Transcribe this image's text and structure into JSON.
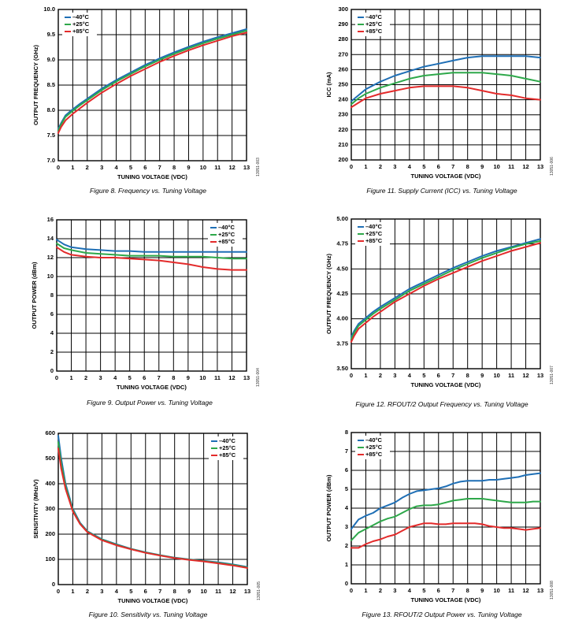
{
  "chart_data": [
    {
      "type": "line",
      "caption": "Figure 8. Frequency vs. Tuning Voltage",
      "xlabel": "TUNING VOLTAGE (VDC)",
      "ylabel": "OUTPUT FREQUENCY (GHz)",
      "code": "13051-003",
      "xlim": [
        0,
        13
      ],
      "ylim": [
        7.0,
        10.0
      ],
      "xticks": [
        0,
        1,
        2,
        3,
        4,
        5,
        6,
        7,
        8,
        9,
        10,
        11,
        12,
        13
      ],
      "yticks": [
        7.0,
        7.5,
        8.0,
        8.5,
        9.0,
        9.5,
        10.0
      ],
      "ytick_labels": [
        "7.0",
        "7.5",
        "8.0",
        "8.5",
        "9.0",
        "9.5",
        "10.0"
      ],
      "legend": "top-left",
      "grid": true,
      "x": [
        0,
        0.2,
        0.5,
        1,
        1.5,
        2,
        3,
        4,
        5,
        6,
        7,
        8,
        9,
        10,
        11,
        12,
        13
      ],
      "series": [
        {
          "name": "–40°C",
          "color": "#1f6fb5",
          "values": [
            7.63,
            7.75,
            7.9,
            8.02,
            8.13,
            8.23,
            8.43,
            8.6,
            8.75,
            8.9,
            9.03,
            9.15,
            9.26,
            9.36,
            9.45,
            9.53,
            9.61
          ]
        },
        {
          "name": "+25°C",
          "color": "#2ea84a",
          "values": [
            7.6,
            7.72,
            7.87,
            7.99,
            8.1,
            8.2,
            8.4,
            8.57,
            8.72,
            8.87,
            9.0,
            9.12,
            9.23,
            9.33,
            9.42,
            9.5,
            9.58
          ]
        },
        {
          "name": "+85°C",
          "color": "#e32b2b",
          "values": [
            7.55,
            7.67,
            7.8,
            7.93,
            8.04,
            8.15,
            8.35,
            8.52,
            8.68,
            8.82,
            8.96,
            9.08,
            9.19,
            9.29,
            9.38,
            9.47,
            9.54
          ]
        }
      ]
    },
    {
      "type": "line",
      "caption": "Figure 11. Supply Current (ICC) vs. Tuning Voltage",
      "xlabel": "TUNING VOLTAGE (VDC)",
      "ylabel": "ICC (mA)",
      "code": "13051-006",
      "xlim": [
        0,
        13
      ],
      "ylim": [
        200,
        300
      ],
      "xticks": [
        0,
        1,
        2,
        3,
        4,
        5,
        6,
        7,
        8,
        9,
        10,
        11,
        12,
        13
      ],
      "yticks": [
        200,
        210,
        220,
        230,
        240,
        250,
        260,
        270,
        280,
        290,
        300
      ],
      "ytick_labels": [
        "200",
        "210",
        "220",
        "230",
        "240",
        "250",
        "260",
        "270",
        "280",
        "290",
        "300"
      ],
      "legend": "top-left",
      "grid": true,
      "x": [
        0,
        0.5,
        1,
        2,
        3,
        4,
        5,
        6,
        7,
        8,
        9,
        10,
        11,
        12,
        13
      ],
      "series": [
        {
          "name": "–40°C",
          "color": "#1f6fb5",
          "values": [
            239,
            243,
            247,
            252,
            256,
            259,
            262,
            264,
            266,
            268,
            269,
            269,
            269,
            269,
            268
          ]
        },
        {
          "name": "+25°C",
          "color": "#2ea84a",
          "values": [
            237,
            241,
            244,
            248,
            251,
            254,
            256,
            257,
            258,
            258,
            258,
            257,
            256,
            254,
            252
          ]
        },
        {
          "name": "+85°C",
          "color": "#e32b2b",
          "values": [
            235,
            238,
            241,
            244,
            246,
            248,
            249,
            249,
            249,
            248,
            246,
            244,
            243,
            241,
            240
          ]
        }
      ]
    },
    {
      "type": "line",
      "caption": "Figure 9. Output Power vs. Tuning Voltage",
      "xlabel": "TUNING VOLTAGE (VDC)",
      "ylabel": "OUTPUT POWER (dBm)",
      "code": "13051-004",
      "xlim": [
        0,
        13
      ],
      "ylim": [
        0,
        16
      ],
      "xticks": [
        0,
        1,
        2,
        3,
        4,
        5,
        6,
        7,
        8,
        9,
        10,
        11,
        12,
        13
      ],
      "yticks": [
        0,
        2,
        4,
        6,
        8,
        10,
        12,
        14,
        16
      ],
      "ytick_labels": [
        "0",
        "2",
        "4",
        "6",
        "8",
        "10",
        "12",
        "14",
        "16"
      ],
      "legend": "top-right",
      "grid": true,
      "x": [
        0,
        0.5,
        1,
        2,
        3,
        4,
        5,
        6,
        7,
        8,
        9,
        10,
        11,
        12,
        13
      ],
      "series": [
        {
          "name": "–40°C",
          "color": "#1f6fb5",
          "values": [
            13.9,
            13.4,
            13.1,
            12.9,
            12.8,
            12.7,
            12.7,
            12.6,
            12.6,
            12.6,
            12.6,
            12.6,
            12.6,
            12.6,
            12.6
          ]
        },
        {
          "name": "+25°C",
          "color": "#2ea84a",
          "values": [
            13.5,
            13.0,
            12.8,
            12.5,
            12.4,
            12.3,
            12.2,
            12.2,
            12.2,
            12.1,
            12.1,
            12.1,
            12.0,
            11.9,
            11.9
          ]
        },
        {
          "name": "+85°C",
          "color": "#e32b2b",
          "values": [
            13.1,
            12.6,
            12.3,
            12.1,
            12.0,
            12.0,
            11.9,
            11.8,
            11.7,
            11.5,
            11.3,
            11.0,
            10.8,
            10.7,
            10.7
          ]
        }
      ]
    },
    {
      "type": "line",
      "caption": "Figure 12. RFOUT/2 Output Frequency vs. Tuning Voltage",
      "xlabel": "TUNING VOLTAGE (VDC)",
      "ylabel": "OUTPUT FREQUENCY (GHz)",
      "code": "13051-007",
      "xlim": [
        0,
        13
      ],
      "ylim": [
        3.5,
        5.0
      ],
      "xticks": [
        0,
        1,
        2,
        3,
        4,
        5,
        6,
        7,
        8,
        9,
        10,
        11,
        12,
        13
      ],
      "yticks": [
        3.5,
        3.75,
        4.0,
        4.25,
        4.5,
        4.75,
        5.0
      ],
      "ytick_labels": [
        "3.50",
        "3.75",
        "4.00",
        "4.25",
        "4.50",
        "4.75",
        "5.00"
      ],
      "legend": "top-left",
      "grid": true,
      "x": [
        0,
        0.2,
        0.5,
        1,
        1.5,
        2,
        3,
        4,
        5,
        6,
        7,
        8,
        9,
        10,
        11,
        12,
        13
      ],
      "series": [
        {
          "name": "–40°C",
          "color": "#1f6fb5",
          "values": [
            3.82,
            3.88,
            3.95,
            4.01,
            4.07,
            4.12,
            4.21,
            4.3,
            4.37,
            4.44,
            4.51,
            4.57,
            4.63,
            4.68,
            4.72,
            4.76,
            4.8
          ]
        },
        {
          "name": "+25°C",
          "color": "#2ea84a",
          "values": [
            3.8,
            3.86,
            3.93,
            3.99,
            4.05,
            4.1,
            4.19,
            4.28,
            4.35,
            4.42,
            4.49,
            4.55,
            4.61,
            4.66,
            4.71,
            4.75,
            4.78
          ]
        },
        {
          "name": "+85°C",
          "color": "#e32b2b",
          "values": [
            3.77,
            3.83,
            3.9,
            3.96,
            4.02,
            4.07,
            4.17,
            4.25,
            4.33,
            4.4,
            4.46,
            4.52,
            4.58,
            4.63,
            4.68,
            4.72,
            4.76
          ]
        }
      ]
    },
    {
      "type": "line",
      "caption": "Figure 10. Sensitivity vs. Tuning Voltage",
      "xlabel": "TUNING VOLTAGE (VDC)",
      "ylabel": "SENSITIVITY (MHz/V)",
      "code": "13051-005",
      "xlim": [
        0,
        13
      ],
      "ylim": [
        0,
        600
      ],
      "xticks": [
        0,
        1,
        2,
        3,
        4,
        5,
        6,
        7,
        8,
        9,
        10,
        11,
        12,
        13
      ],
      "yticks": [
        0,
        100,
        200,
        300,
        400,
        500,
        600
      ],
      "ytick_labels": [
        "0",
        "100",
        "200",
        "300",
        "400",
        "500",
        "600"
      ],
      "legend": "top-right",
      "grid": true,
      "x": [
        0,
        0.2,
        0.5,
        1,
        1.5,
        2,
        3,
        4,
        5,
        6,
        7,
        8,
        9,
        10,
        11,
        12,
        13
      ],
      "series": [
        {
          "name": "–40°C",
          "color": "#1f6fb5",
          "values": [
            590,
            500,
            400,
            300,
            245,
            212,
            180,
            160,
            142,
            128,
            117,
            107,
            100,
            94,
            88,
            80,
            70
          ]
        },
        {
          "name": "+25°C",
          "color": "#2ea84a",
          "values": [
            565,
            480,
            390,
            295,
            242,
            210,
            178,
            158,
            141,
            127,
            116,
            106,
            99,
            93,
            86,
            78,
            68
          ]
        },
        {
          "name": "+85°C",
          "color": "#e32b2b",
          "values": [
            540,
            460,
            380,
            290,
            240,
            208,
            176,
            156,
            140,
            126,
            115,
            105,
            98,
            92,
            84,
            76,
            66
          ]
        }
      ]
    },
    {
      "type": "line",
      "caption": "Figure 13. RFOUT/2 Output Power vs. Tuning Voltage",
      "xlabel": "TUNING VOLTAGE (VDC)",
      "ylabel": "OUTPUT POWER (dBm)",
      "code": "13051-008",
      "xlim": [
        0,
        13
      ],
      "ylim": [
        0,
        8
      ],
      "xticks": [
        0,
        1,
        2,
        3,
        4,
        5,
        6,
        7,
        8,
        9,
        10,
        11,
        12,
        13
      ],
      "yticks": [
        0,
        1,
        2,
        3,
        4,
        5,
        6,
        7,
        8
      ],
      "ytick_labels": [
        "0",
        "1",
        "2",
        "3",
        "4",
        "5",
        "6",
        "7",
        "8"
      ],
      "legend": "top-left",
      "grid": true,
      "x": [
        0,
        0.5,
        1,
        1.5,
        2,
        2.5,
        3,
        3.5,
        4,
        4.5,
        5,
        5.5,
        6,
        6.5,
        7,
        7.5,
        8,
        8.5,
        9,
        9.5,
        10,
        10.5,
        11,
        11.5,
        12,
        12.5,
        13
      ],
      "series": [
        {
          "name": "–40°C",
          "color": "#1f6fb5",
          "values": [
            2.9,
            3.4,
            3.6,
            3.75,
            4.0,
            4.15,
            4.3,
            4.55,
            4.75,
            4.9,
            4.95,
            5.0,
            5.05,
            5.15,
            5.3,
            5.4,
            5.45,
            5.45,
            5.45,
            5.5,
            5.5,
            5.55,
            5.6,
            5.65,
            5.75,
            5.8,
            5.85
          ]
        },
        {
          "name": "+25°C",
          "color": "#2ea84a",
          "values": [
            2.3,
            2.7,
            2.9,
            3.1,
            3.3,
            3.45,
            3.55,
            3.75,
            3.95,
            4.1,
            4.15,
            4.15,
            4.2,
            4.3,
            4.4,
            4.45,
            4.5,
            4.5,
            4.5,
            4.45,
            4.4,
            4.35,
            4.3,
            4.3,
            4.3,
            4.35,
            4.35
          ]
        },
        {
          "name": "+85°C",
          "color": "#e32b2b",
          "values": [
            1.9,
            1.9,
            2.1,
            2.25,
            2.35,
            2.5,
            2.6,
            2.8,
            3.0,
            3.1,
            3.2,
            3.2,
            3.15,
            3.15,
            3.2,
            3.2,
            3.2,
            3.2,
            3.15,
            3.05,
            3.0,
            2.95,
            2.95,
            2.9,
            2.85,
            2.9,
            2.95
          ]
        }
      ]
    }
  ]
}
